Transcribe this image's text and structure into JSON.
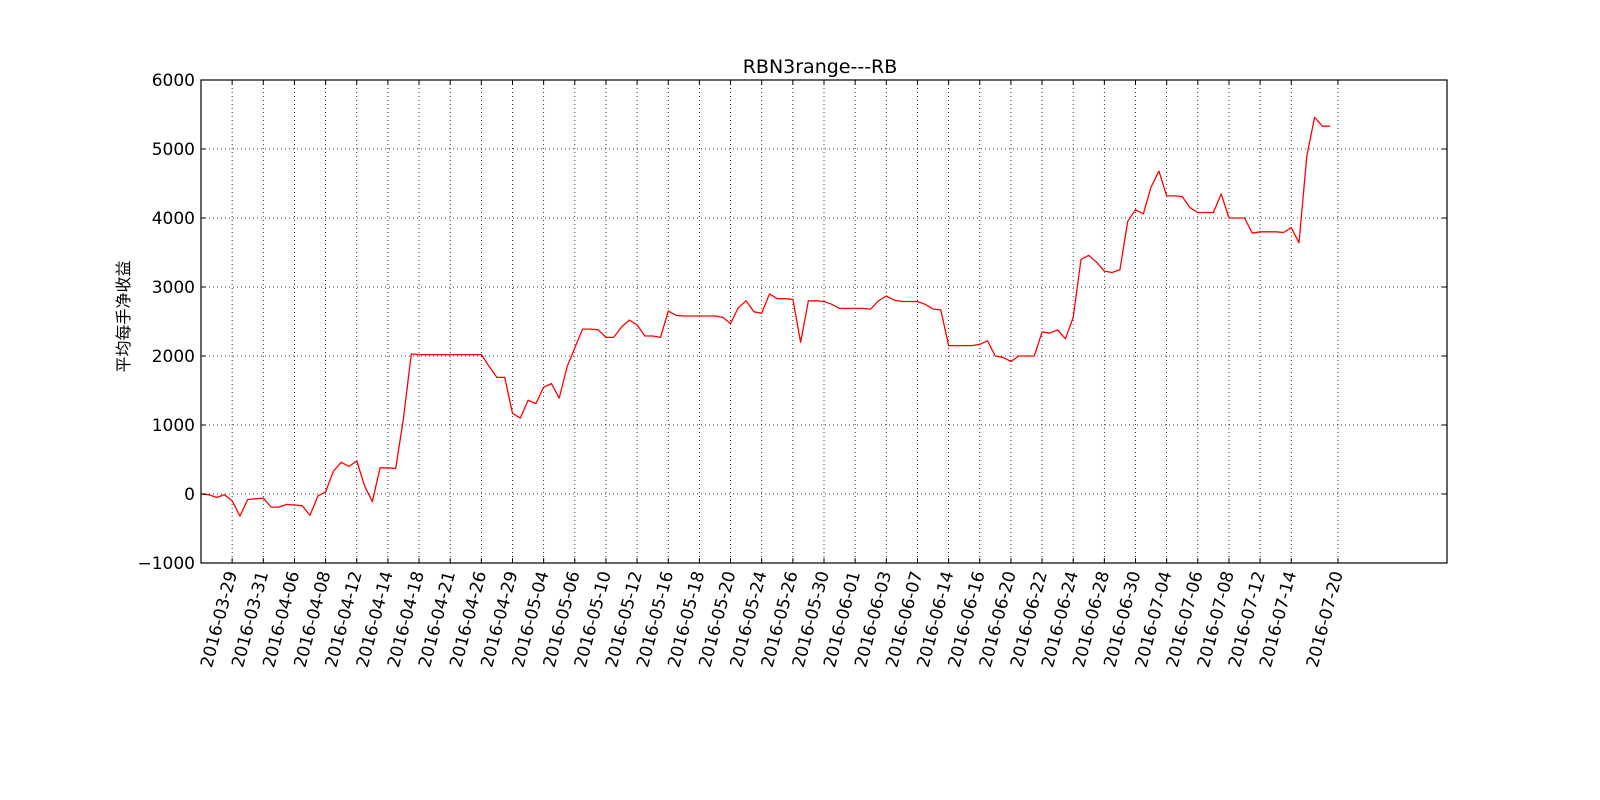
{
  "chart_data": {
    "type": "line",
    "title": "RBN3range---RB",
    "xlabel": "",
    "ylabel": "平均每手净收益",
    "ylim": [
      -1000,
      6000
    ],
    "yticks": [
      "−1000",
      "0",
      "1000",
      "2000",
      "3000",
      "4000",
      "5000",
      "6000"
    ],
    "ytick_values": [
      -1000,
      0,
      1000,
      2000,
      3000,
      4000,
      5000,
      6000
    ],
    "xlim": [
      0,
      160
    ],
    "grid": true,
    "x_tick_positions": [
      4,
      8,
      12,
      16,
      20,
      24,
      28,
      32,
      36,
      40,
      44,
      48,
      52,
      56,
      60,
      64,
      68,
      72,
      76,
      80,
      84,
      88,
      92,
      96,
      100,
      104,
      108,
      112,
      116,
      120,
      124,
      128,
      132,
      136,
      140,
      146
    ],
    "xticks": [
      "2016-03-29",
      "2016-03-31",
      "2016-04-06",
      "2016-04-08",
      "2016-04-12",
      "2016-04-14",
      "2016-04-18",
      "2016-04-21",
      "2016-04-26",
      "2016-04-29",
      "2016-05-04",
      "2016-05-06",
      "2016-05-10",
      "2016-05-12",
      "2016-05-16",
      "2016-05-18",
      "2016-05-20",
      "2016-05-24",
      "2016-05-26",
      "2016-05-30",
      "2016-06-01",
      "2016-06-03",
      "2016-06-07",
      "2016-06-14",
      "2016-06-16",
      "2016-06-20",
      "2016-06-22",
      "2016-06-24",
      "2016-06-28",
      "2016-06-30",
      "2016-07-04",
      "2016-07-06",
      "2016-07-08",
      "2016-07-12",
      "2016-07-14",
      "2016-07-20"
    ],
    "series": [
      {
        "color": "#ff0000",
        "values": [
          0,
          -10,
          -50,
          -10,
          -100,
          -320,
          -80,
          -70,
          -60,
          -190,
          -190,
          -150,
          -160,
          -170,
          -310,
          -30,
          30,
          330,
          460,
          400,
          480,
          120,
          -110,
          380,
          380,
          370,
          1100,
          2030,
          2020,
          2020,
          2020,
          2020,
          2020,
          2020,
          2020,
          2020,
          2020,
          1850,
          1690,
          1690,
          1170,
          1100,
          1360,
          1310,
          1550,
          1600,
          1390,
          1840,
          2120,
          2390,
          2390,
          2380,
          2270,
          2270,
          2420,
          2520,
          2450,
          2290,
          2290,
          2270,
          2650,
          2590,
          2580,
          2580,
          2580,
          2580,
          2580,
          2560,
          2470,
          2700,
          2800,
          2640,
          2620,
          2900,
          2830,
          2830,
          2820,
          2200,
          2800,
          2800,
          2790,
          2750,
          2690,
          2690,
          2690,
          2690,
          2680,
          2800,
          2870,
          2810,
          2790,
          2790,
          2790,
          2750,
          2680,
          2670,
          2150,
          2150,
          2150,
          2150,
          2170,
          2220,
          2000,
          1980,
          1920,
          2000,
          2000,
          2000,
          2350,
          2330,
          2380,
          2250,
          2560,
          3400,
          3460,
          3360,
          3230,
          3210,
          3250,
          3950,
          4120,
          4060,
          4450,
          4680,
          4320,
          4320,
          4310,
          4150,
          4080,
          4080,
          4080,
          4350,
          4000,
          4000,
          4000,
          3780,
          3800,
          3800,
          3800,
          3790,
          3860,
          3640,
          4900,
          5460,
          5330,
          5330
        ]
      }
    ]
  }
}
